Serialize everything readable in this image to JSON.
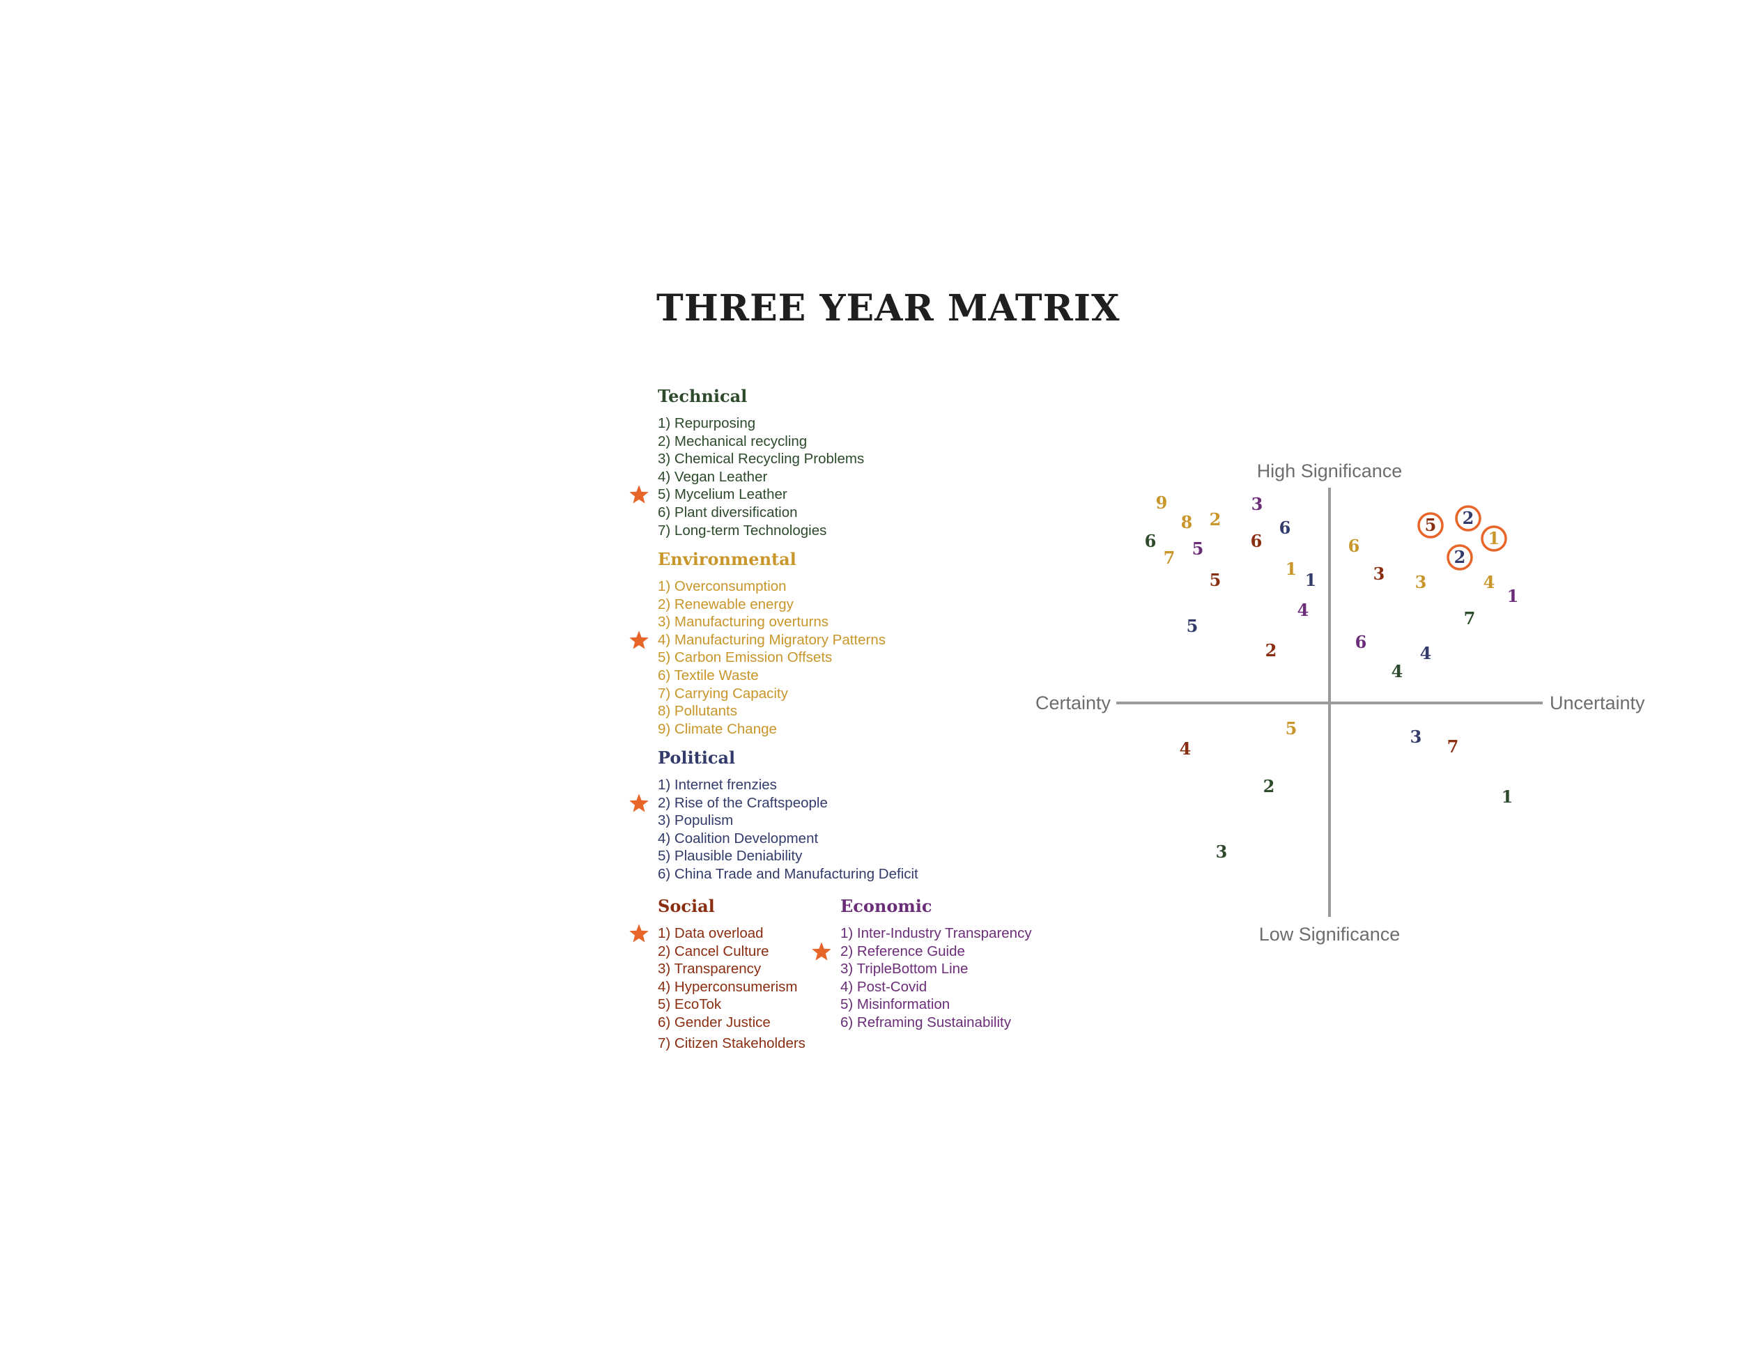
{
  "title": "THREE YEAR MATRIX",
  "colors": {
    "title": "#1f1f1f",
    "technical": "#2e4a2c",
    "environmental": "#c8962a",
    "political": "#333b6a",
    "social": "#8a2e12",
    "economic": "#6b2d78",
    "highlight": "#e8652a",
    "axis": "#9a9a9a"
  },
  "categories": {
    "technical": {
      "heading": "Technical",
      "items": [
        {
          "label": "1) Repurposing",
          "starred": false
        },
        {
          "label": "2) Mechanical recycling",
          "starred": false
        },
        {
          "label": "3) Chemical Recycling Problems",
          "starred": false
        },
        {
          "label": "4) Vegan Leather",
          "starred": false
        },
        {
          "label": "5) Mycelium Leather",
          "starred": true
        },
        {
          "label": "6) Plant diversification",
          "starred": false
        },
        {
          "label": "7) Long-term Technologies",
          "starred": false
        }
      ]
    },
    "environmental": {
      "heading": "Environmental",
      "items": [
        {
          "label": "1) Overconsumption",
          "starred": false
        },
        {
          "label": "2) Renewable energy",
          "starred": false
        },
        {
          "label": "3) Manufacturing overturns",
          "starred": false
        },
        {
          "label": "4) Manufacturing  Migratory Patterns",
          "starred": true
        },
        {
          "label": "5) Carbon Emission Offsets",
          "starred": false
        },
        {
          "label": "6) Textile Waste",
          "starred": false
        },
        {
          "label": "7) Carrying Capacity",
          "starred": false
        },
        {
          "label": "8) Pollutants",
          "starred": false
        },
        {
          "label": "9) Climate Change",
          "starred": false
        }
      ]
    },
    "political": {
      "heading": "Political",
      "items": [
        {
          "label": "1) Internet frenzies",
          "starred": false
        },
        {
          "label": "2) Rise of the Craftspeople",
          "starred": true
        },
        {
          "label": "3) Populism",
          "starred": false
        },
        {
          "label": "4) Coalition Development",
          "starred": false
        },
        {
          "label": "5) Plausible Deniability",
          "starred": false
        },
        {
          "label": "6) China Trade and Manufacturing Deficit",
          "starred": false
        }
      ]
    },
    "social": {
      "heading": "Social",
      "items": [
        {
          "label": "1) Data overload",
          "starred": true
        },
        {
          "label": "2) Cancel Culture",
          "starred": false
        },
        {
          "label": "3) Transparency",
          "starred": false
        },
        {
          "label": "4) Hyperconsumerism",
          "starred": false
        },
        {
          "label": "5) EcoTok",
          "starred": false
        },
        {
          "label": "6) Gender Justice",
          "starred": false
        },
        {
          "label": "7) Citizen Stakeholders",
          "starred": false
        }
      ]
    },
    "economic": {
      "heading": "Economic",
      "items": [
        {
          "label": "1) Inter-Industry Transparency",
          "starred": false
        },
        {
          "label": "2) Reference Guide",
          "starred": true
        },
        {
          "label": "3) TripleBottom Line",
          "starred": false
        },
        {
          "label": "4) Post-Covid",
          "starred": false
        },
        {
          "label": "5) Misinformation",
          "starred": false
        },
        {
          "label": "6) Reframing Sustainability",
          "starred": false
        }
      ]
    }
  },
  "matrix": {
    "axes": {
      "top": "High Significance",
      "bottom": "Low Significance",
      "left": "Certainty",
      "right": "Uncertainty"
    },
    "points": [
      {
        "n": "9",
        "cat": "environmental",
        "x": -2.41,
        "y": 2.87,
        "circled": false
      },
      {
        "n": "8",
        "cat": "environmental",
        "x": -2.05,
        "y": 2.59,
        "circled": false
      },
      {
        "n": "2",
        "cat": "environmental",
        "x": -1.64,
        "y": 2.63,
        "circled": false
      },
      {
        "n": "3",
        "cat": "economic",
        "x": -1.04,
        "y": 2.85,
        "circled": false
      },
      {
        "n": "6",
        "cat": "political",
        "x": -0.64,
        "y": 2.51,
        "circled": false
      },
      {
        "n": "6",
        "cat": "technical",
        "x": -2.57,
        "y": 2.32,
        "circled": false
      },
      {
        "n": "7",
        "cat": "environmental",
        "x": -2.3,
        "y": 2.08,
        "circled": false
      },
      {
        "n": "5",
        "cat": "economic",
        "x": -1.89,
        "y": 2.21,
        "circled": false
      },
      {
        "n": "6",
        "cat": "social",
        "x": -1.05,
        "y": 2.32,
        "circled": false
      },
      {
        "n": "1",
        "cat": "environmental",
        "x": -0.55,
        "y": 1.92,
        "circled": false
      },
      {
        "n": "5",
        "cat": "social",
        "x": -1.64,
        "y": 1.76,
        "circled": false
      },
      {
        "n": "1",
        "cat": "political",
        "x": -0.27,
        "y": 1.76,
        "circled": false
      },
      {
        "n": "4",
        "cat": "economic",
        "x": -0.38,
        "y": 1.33,
        "circled": false
      },
      {
        "n": "5",
        "cat": "political",
        "x": -1.97,
        "y": 1.1,
        "circled": false
      },
      {
        "n": "2",
        "cat": "social",
        "x": -0.84,
        "y": 0.75,
        "circled": false
      },
      {
        "n": "6",
        "cat": "environmental",
        "x": 0.35,
        "y": 2.25,
        "circled": false
      },
      {
        "n": "3",
        "cat": "social",
        "x": 0.71,
        "y": 1.85,
        "circled": false
      },
      {
        "n": "3",
        "cat": "environmental",
        "x": 1.31,
        "y": 1.73,
        "circled": false
      },
      {
        "n": "5",
        "cat": "social",
        "x": 1.45,
        "y": 2.55,
        "circled": true
      },
      {
        "n": "2",
        "cat": "political",
        "x": 1.99,
        "y": 2.65,
        "circled": true
      },
      {
        "n": "1",
        "cat": "environmental",
        "x": 2.36,
        "y": 2.36,
        "circled": true
      },
      {
        "n": "2",
        "cat": "political",
        "x": 1.87,
        "y": 2.09,
        "circled": true
      },
      {
        "n": "4",
        "cat": "environmental",
        "x": 2.29,
        "y": 1.73,
        "circled": false
      },
      {
        "n": "1",
        "cat": "economic",
        "x": 2.63,
        "y": 1.53,
        "circled": false
      },
      {
        "n": "7",
        "cat": "technical",
        "x": 2.01,
        "y": 1.21,
        "circled": false
      },
      {
        "n": "6",
        "cat": "economic",
        "x": 0.45,
        "y": 0.87,
        "circled": false
      },
      {
        "n": "4",
        "cat": "political",
        "x": 1.38,
        "y": 0.71,
        "circled": false
      },
      {
        "n": "4",
        "cat": "technical",
        "x": 0.97,
        "y": 0.45,
        "circled": false
      },
      {
        "n": "5",
        "cat": "environmental",
        "x": -0.55,
        "y": -0.37,
        "circled": false
      },
      {
        "n": "4",
        "cat": "social",
        "x": -2.07,
        "y": -0.66,
        "circled": false
      },
      {
        "n": "2",
        "cat": "technical",
        "x": -0.87,
        "y": -1.2,
        "circled": false
      },
      {
        "n": "3",
        "cat": "technical",
        "x": -1.55,
        "y": -2.14,
        "circled": false
      },
      {
        "n": "3",
        "cat": "political",
        "x": 1.24,
        "y": -0.49,
        "circled": false
      },
      {
        "n": "7",
        "cat": "social",
        "x": 1.77,
        "y": -0.63,
        "circled": false
      },
      {
        "n": "1",
        "cat": "technical",
        "x": 2.55,
        "y": -1.35,
        "circled": false
      }
    ]
  }
}
